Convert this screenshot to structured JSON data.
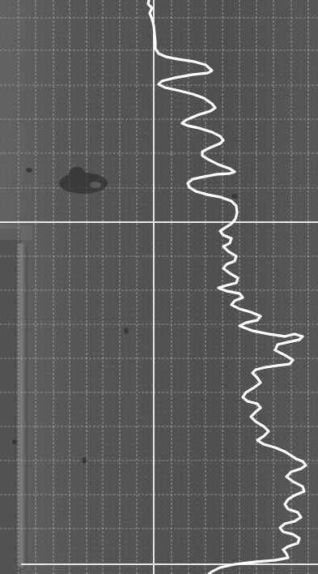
{
  "scene": {
    "kind": "well-log-chart-scan",
    "paper_color": "#4a4a4a",
    "paper_edge_color": "#6a6a6a",
    "grid_color": "#d8d8d8",
    "trace_color": "#ffffff",
    "side_tube_color": "#5c5c5c"
  }
}
